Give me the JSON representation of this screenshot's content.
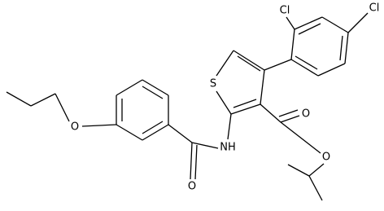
{
  "atoms": [
    {
      "label": "Cl"
    },
    {
      "label": "Cl"
    },
    {
      "label": "S"
    },
    {
      "label": "NH"
    },
    {
      "label": "O"
    },
    {
      "label": "O"
    },
    {
      "label": "O"
    },
    {
      "label": "O"
    }
  ]
}
